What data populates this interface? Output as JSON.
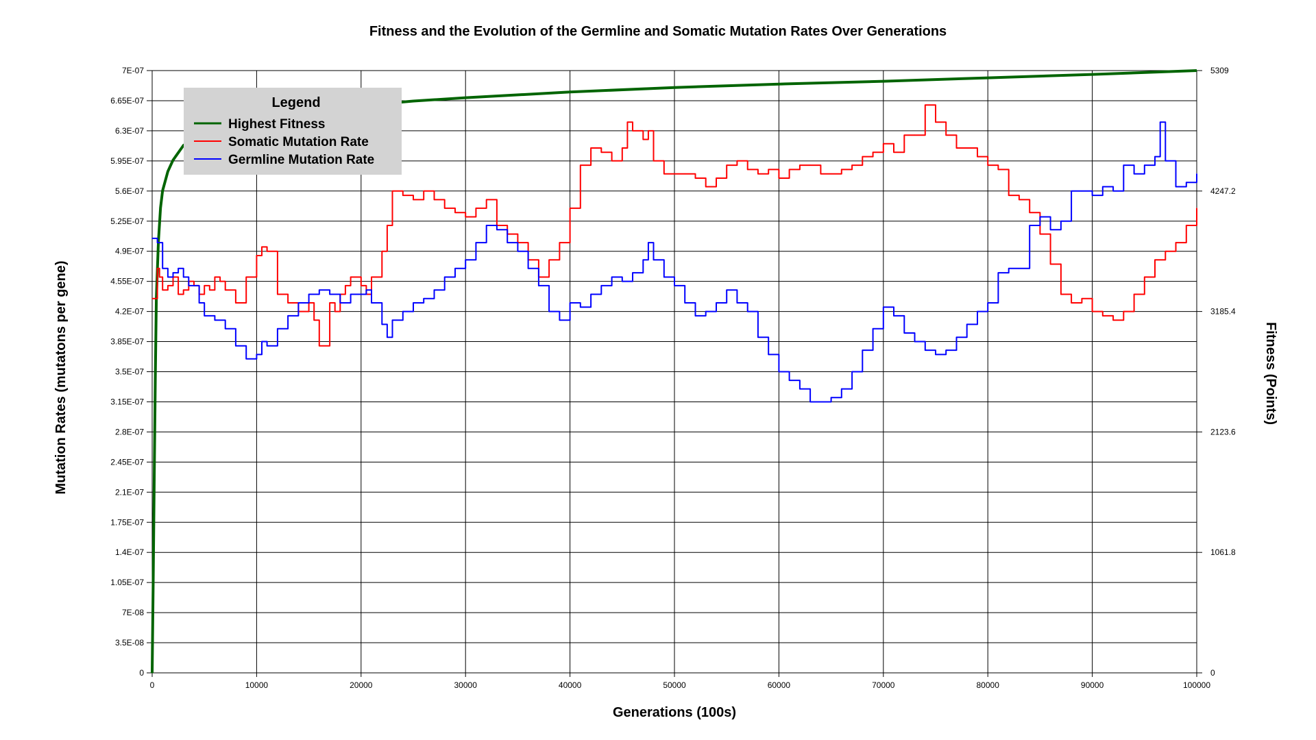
{
  "chart_data": {
    "type": "line",
    "title": "Fitness and the Evolution of the Germline and Somatic Mutation Rates Over Generations",
    "xlabel": "Generations (100s)",
    "ylabel_left": "Mutation Rates (mutatons per gene)",
    "ylabel_right": "Fitness (Points)",
    "xlim": [
      0,
      100000
    ],
    "ylim_left": [
      0,
      7e-07
    ],
    "ylim_right": [
      0,
      5309
    ],
    "x_ticks": [
      "0",
      "10000",
      "20000",
      "30000",
      "40000",
      "50000",
      "60000",
      "70000",
      "80000",
      "90000",
      "100000"
    ],
    "y_left_ticks": [
      "0",
      "3.5E-08",
      "7E-08",
      "1.05E-07",
      "1.4E-07",
      "1.75E-07",
      "2.1E-07",
      "2.45E-07",
      "2.8E-07",
      "3.15E-07",
      "3.5E-07",
      "3.85E-07",
      "4.2E-07",
      "4.55E-07",
      "4.9E-07",
      "5.25E-07",
      "5.6E-07",
      "5.95E-07",
      "6.3E-07",
      "6.65E-07",
      "7E-07"
    ],
    "y_right_ticks": [
      "0",
      "1061.8",
      "2123.6",
      "3185.4",
      "4247.2",
      "5309"
    ],
    "grid": true,
    "legend": {
      "title": "Legend",
      "placement": "top-left",
      "entries": [
        "Highest Fitness",
        "Somatic Mutation Rate",
        "Germline Mutation Rate"
      ]
    },
    "series": [
      {
        "name": "Highest Fitness",
        "axis": "right",
        "color": "#006400",
        "x": [
          0,
          100,
          200,
          300,
          400,
          600,
          800,
          1000,
          1500,
          2000,
          3000,
          5000,
          8000,
          10000,
          15000,
          20000,
          25000,
          30000,
          40000,
          50000,
          60000,
          70000,
          80000,
          90000,
          100000
        ],
        "values": [
          0,
          800,
          1700,
          2600,
          3300,
          3800,
          4100,
          4250,
          4420,
          4520,
          4650,
          4760,
          4850,
          4900,
          4960,
          5000,
          5040,
          5070,
          5120,
          5160,
          5190,
          5215,
          5245,
          5275,
          5309
        ]
      },
      {
        "name": "Somatic Mutation Rate",
        "axis": "left",
        "color": "#ff0000",
        "x": [
          0,
          500,
          700,
          1000,
          1500,
          2000,
          2500,
          3000,
          3500,
          4000,
          4500,
          5000,
          5500,
          6000,
          6500,
          7000,
          8000,
          9000,
          10000,
          10500,
          11000,
          12000,
          13000,
          14000,
          15000,
          15500,
          16000,
          17000,
          17500,
          18000,
          18500,
          19000,
          20000,
          20500,
          21000,
          22000,
          22500,
          23000,
          24000,
          25000,
          26000,
          27000,
          28000,
          29000,
          30000,
          31000,
          32000,
          33000,
          34000,
          35000,
          36000,
          37000,
          38000,
          39000,
          40000,
          41000,
          42000,
          43000,
          44000,
          45000,
          45500,
          46000,
          47000,
          47500,
          48000,
          49000,
          50000,
          51000,
          52000,
          53000,
          54000,
          55000,
          56000,
          57000,
          58000,
          59000,
          60000,
          61000,
          62000,
          63000,
          64000,
          65000,
          66000,
          67000,
          68000,
          69000,
          70000,
          71000,
          72000,
          73000,
          74000,
          75000,
          76000,
          77000,
          78000,
          79000,
          80000,
          81000,
          82000,
          83000,
          84000,
          85000,
          86000,
          87000,
          88000,
          89000,
          90000,
          91000,
          92000,
          93000,
          94000,
          95000,
          96000,
          97000,
          98000,
          99000,
          100000
        ],
        "values": [
          4.35e-07,
          4.7e-07,
          4.6e-07,
          4.45e-07,
          4.5e-07,
          4.6e-07,
          4.4e-07,
          4.45e-07,
          4.55e-07,
          4.5e-07,
          4.4e-07,
          4.5e-07,
          4.45e-07,
          4.6e-07,
          4.55e-07,
          4.45e-07,
          4.3e-07,
          4.6e-07,
          4.85e-07,
          4.95e-07,
          4.9e-07,
          4.4e-07,
          4.3e-07,
          4.2e-07,
          4.3e-07,
          4.1e-07,
          3.8e-07,
          4.3e-07,
          4.2e-07,
          4.4e-07,
          4.5e-07,
          4.6e-07,
          4.5e-07,
          4.4e-07,
          4.6e-07,
          4.9e-07,
          5.2e-07,
          5.6e-07,
          5.55e-07,
          5.5e-07,
          5.6e-07,
          5.5e-07,
          5.4e-07,
          5.35e-07,
          5.3e-07,
          5.4e-07,
          5.5e-07,
          5.2e-07,
          5.1e-07,
          5e-07,
          4.8e-07,
          4.6e-07,
          4.8e-07,
          5e-07,
          5.4e-07,
          5.9e-07,
          6.1e-07,
          6.05e-07,
          5.95e-07,
          6.1e-07,
          6.4e-07,
          6.3e-07,
          6.2e-07,
          6.3e-07,
          5.95e-07,
          5.8e-07,
          5.8e-07,
          5.8e-07,
          5.75e-07,
          5.65e-07,
          5.75e-07,
          5.9e-07,
          5.95e-07,
          5.85e-07,
          5.8e-07,
          5.85e-07,
          5.75e-07,
          5.85e-07,
          5.9e-07,
          5.9e-07,
          5.8e-07,
          5.8e-07,
          5.85e-07,
          5.9e-07,
          6e-07,
          6.05e-07,
          6.15e-07,
          6.05e-07,
          6.25e-07,
          6.25e-07,
          6.6e-07,
          6.4e-07,
          6.25e-07,
          6.1e-07,
          6.1e-07,
          6e-07,
          5.9e-07,
          5.85e-07,
          5.55e-07,
          5.5e-07,
          5.35e-07,
          5.1e-07,
          4.75e-07,
          4.4e-07,
          4.3e-07,
          4.35e-07,
          4.2e-07,
          4.15e-07,
          4.1e-07,
          4.2e-07,
          4.4e-07,
          4.6e-07,
          4.8e-07,
          4.9e-07,
          5e-07,
          5.2e-07,
          5.4e-07
        ]
      },
      {
        "name": "Germline Mutation Rate",
        "axis": "left",
        "color": "#0000ff",
        "x": [
          0,
          500,
          1000,
          1500,
          2000,
          2500,
          3000,
          3500,
          4000,
          4500,
          5000,
          6000,
          7000,
          8000,
          9000,
          10000,
          10500,
          11000,
          12000,
          13000,
          14000,
          15000,
          16000,
          17000,
          18000,
          19000,
          20000,
          20500,
          21000,
          22000,
          22500,
          23000,
          24000,
          25000,
          26000,
          27000,
          28000,
          29000,
          30000,
          31000,
          32000,
          33000,
          34000,
          35000,
          36000,
          37000,
          38000,
          39000,
          40000,
          41000,
          42000,
          43000,
          44000,
          45000,
          46000,
          47000,
          47500,
          48000,
          49000,
          50000,
          51000,
          52000,
          53000,
          54000,
          55000,
          56000,
          57000,
          58000,
          59000,
          60000,
          61000,
          62000,
          63000,
          64000,
          65000,
          66000,
          67000,
          68000,
          69000,
          70000,
          71000,
          72000,
          73000,
          74000,
          75000,
          76000,
          77000,
          78000,
          79000,
          80000,
          81000,
          82000,
          83000,
          84000,
          85000,
          86000,
          87000,
          88000,
          89000,
          90000,
          91000,
          92000,
          93000,
          94000,
          95000,
          96000,
          96500,
          97000,
          98000,
          99000,
          100000
        ],
        "values": [
          5.05e-07,
          5e-07,
          4.7e-07,
          4.6e-07,
          4.65e-07,
          4.7e-07,
          4.6e-07,
          4.5e-07,
          4.5e-07,
          4.3e-07,
          4.15e-07,
          4.1e-07,
          4e-07,
          3.8e-07,
          3.65e-07,
          3.7e-07,
          3.85e-07,
          3.8e-07,
          4e-07,
          4.15e-07,
          4.3e-07,
          4.4e-07,
          4.45e-07,
          4.4e-07,
          4.3e-07,
          4.4e-07,
          4.4e-07,
          4.45e-07,
          4.3e-07,
          4.05e-07,
          3.9e-07,
          4.1e-07,
          4.2e-07,
          4.3e-07,
          4.35e-07,
          4.45e-07,
          4.6e-07,
          4.7e-07,
          4.8e-07,
          5e-07,
          5.2e-07,
          5.15e-07,
          5e-07,
          4.9e-07,
          4.7e-07,
          4.5e-07,
          4.2e-07,
          4.1e-07,
          4.3e-07,
          4.25e-07,
          4.4e-07,
          4.5e-07,
          4.6e-07,
          4.55e-07,
          4.65e-07,
          4.8e-07,
          5e-07,
          4.8e-07,
          4.6e-07,
          4.5e-07,
          4.3e-07,
          4.15e-07,
          4.2e-07,
          4.3e-07,
          4.45e-07,
          4.3e-07,
          4.2e-07,
          3.9e-07,
          3.7e-07,
          3.5e-07,
          3.4e-07,
          3.3e-07,
          3.15e-07,
          3.15e-07,
          3.2e-07,
          3.3e-07,
          3.5e-07,
          3.75e-07,
          4e-07,
          4.25e-07,
          4.15e-07,
          3.95e-07,
          3.85e-07,
          3.75e-07,
          3.7e-07,
          3.75e-07,
          3.9e-07,
          4.05e-07,
          4.2e-07,
          4.3e-07,
          4.65e-07,
          4.7e-07,
          4.7e-07,
          5.2e-07,
          5.3e-07,
          5.15e-07,
          5.25e-07,
          5.6e-07,
          5.6e-07,
          5.55e-07,
          5.65e-07,
          5.6e-07,
          5.9e-07,
          5.8e-07,
          5.9e-07,
          6e-07,
          6.4e-07,
          5.95e-07,
          5.65e-07,
          5.7e-07,
          5.8e-07
        ]
      }
    ]
  }
}
